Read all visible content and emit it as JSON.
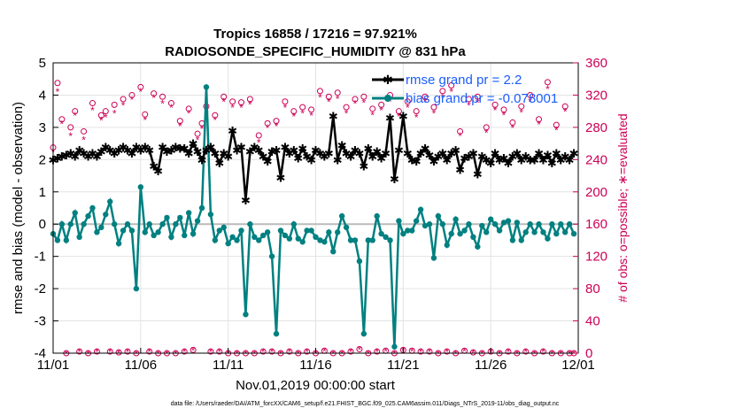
{
  "chart_data": {
    "type": "line",
    "title": "Tropics 16858 / 17216 = 97.921%",
    "subtitle": "RADIOSONDE_SPECIFIC_HUMIDITY @ 831 hPa",
    "xlabel": "Nov.01,2019 00:00:00 start",
    "ylabel": "rmse and bias (model - observation)",
    "y2label": "# of obs: o=possible; ∗=evaluated",
    "x_tick_labels": [
      "11/01",
      "11/06",
      "11/11",
      "11/16",
      "11/21",
      "11/26",
      "12/01"
    ],
    "x_tick_positions": [
      0,
      5,
      10,
      15,
      20,
      25,
      30
    ],
    "xlim": [
      0,
      30
    ],
    "ylim": [
      -4,
      5
    ],
    "y_ticks": [
      -4,
      -3,
      -2,
      -1,
      0,
      1,
      2,
      3,
      4,
      5
    ],
    "y2lim": [
      0,
      360
    ],
    "y2_ticks": [
      0,
      40,
      80,
      120,
      160,
      200,
      240,
      280,
      320,
      360
    ],
    "grid": true,
    "legend_position": "top-right",
    "footnote": "data file: /Users/raeder/DAI/ATM_forcXX/CAM6_setup/f.e21.FHIST_BGC.f09_025.CAM6assim.011/Diags_NTrS_2019-11/obs_diag_output.nc",
    "series": [
      {
        "name": "rmse grand pr = 2.2",
        "color": "#000000",
        "axis": "left",
        "x": [
          0,
          0.25,
          0.5,
          0.75,
          1,
          1.25,
          1.5,
          1.75,
          2,
          2.25,
          2.5,
          2.75,
          3,
          3.25,
          3.5,
          3.75,
          4,
          4.25,
          4.5,
          4.75,
          5,
          5.25,
          5.5,
          5.75,
          6,
          6.25,
          6.5,
          6.75,
          7,
          7.25,
          7.5,
          7.75,
          8,
          8.25,
          8.5,
          8.75,
          9,
          9.25,
          9.5,
          9.75,
          10,
          10.25,
          10.5,
          10.75,
          11,
          11.25,
          11.5,
          11.75,
          12,
          12.25,
          12.5,
          12.75,
          13,
          13.25,
          13.5,
          13.75,
          14,
          14.25,
          14.5,
          14.75,
          15,
          15.25,
          15.5,
          15.75,
          16,
          16.25,
          16.5,
          16.75,
          17,
          17.25,
          17.5,
          17.75,
          18,
          18.25,
          18.5,
          18.75,
          19,
          19.25,
          19.5,
          19.75,
          20,
          20.25,
          20.5,
          20.75,
          21,
          21.25,
          21.5,
          21.75,
          22,
          22.25,
          22.5,
          22.75,
          23,
          23.25,
          23.5,
          23.75,
          24,
          24.25,
          24.5,
          24.75,
          25,
          25.25,
          25.5,
          25.75,
          26,
          26.25,
          26.5,
          26.75,
          27,
          27.25,
          27.5,
          27.75,
          28,
          28.25,
          28.5,
          28.75,
          29,
          29.25,
          29.5,
          29.75
        ],
        "values": [
          2.0,
          2.05,
          2.1,
          2.15,
          2.2,
          2.1,
          2.3,
          2.2,
          2.1,
          2.2,
          2.1,
          2.25,
          2.4,
          2.3,
          2.2,
          2.3,
          2.4,
          2.3,
          2.2,
          2.4,
          2.3,
          2.4,
          2.3,
          1.8,
          1.65,
          2.4,
          2.25,
          2.3,
          2.4,
          2.35,
          2.35,
          2.2,
          2.5,
          2.25,
          2.0,
          2.3,
          2.4,
          2.2,
          1.9,
          2.2,
          2.1,
          2.9,
          2.3,
          2.4,
          0.75,
          2.25,
          2.4,
          2.3,
          2.1,
          1.95,
          2.25,
          2.3,
          1.45,
          2.4,
          2.2,
          2.3,
          2.05,
          2.35,
          2.1,
          2.0,
          2.3,
          2.2,
          2.1,
          2.2,
          3.35,
          2.0,
          2.45,
          2.2,
          2.1,
          2.3,
          2.2,
          1.8,
          2.35,
          2.1,
          2.25,
          2.05,
          2.2,
          3.3,
          1.4,
          2.3,
          3.35,
          2.2,
          2.0,
          1.95,
          2.2,
          2.35,
          2.15,
          1.95,
          2.1,
          2.2,
          2.0,
          2.2,
          2.3,
          1.7,
          2.05,
          2.1,
          2.2,
          1.55,
          2.1,
          2.0,
          1.9,
          2.2,
          2.0,
          2.05,
          1.9,
          2.1,
          2.2,
          2.0,
          2.1,
          2.0,
          2.0,
          2.2,
          2.0,
          2.15,
          1.9,
          2.2,
          2.0,
          2.1,
          2.0,
          2.2
        ],
        "marker": "asterisk"
      },
      {
        "name": "bias grand pr = -0.078001",
        "color": "#008080",
        "axis": "left",
        "values": [
          -0.3,
          -0.5,
          0.0,
          -0.5,
          0.0,
          0.35,
          -0.4,
          0.0,
          0.25,
          0.5,
          -0.25,
          -0.1,
          0.3,
          0.7,
          0.0,
          -0.6,
          -0.2,
          0.0,
          -0.2,
          -2.0,
          1.15,
          -0.25,
          0.0,
          -0.35,
          -0.25,
          0.0,
          0.2,
          -0.4,
          0.0,
          0.2,
          -0.35,
          0.35,
          -0.3,
          0.1,
          0.5,
          4.25,
          0.3,
          -0.5,
          -0.2,
          -0.1,
          -0.6,
          -0.4,
          -0.5,
          -0.2,
          -2.8,
          0.0,
          -0.4,
          -0.5,
          -0.35,
          -0.25,
          -1.0,
          -3.4,
          -0.2,
          -0.35,
          -0.45,
          0.0,
          -0.45,
          -0.55,
          -0.2,
          -0.2,
          -0.4,
          -0.5,
          -0.55,
          -0.25,
          -0.85,
          -0.25,
          0.25,
          -0.1,
          -0.5,
          -0.5,
          -1.15,
          -3.4,
          -0.5,
          -0.5,
          0.25,
          -0.3,
          -0.4,
          -0.5,
          -3.8,
          0.1,
          -0.3,
          -0.2,
          -0.2,
          0.1,
          0.45,
          -0.05,
          0.0,
          -1.05,
          0.25,
          0.0,
          -0.65,
          -0.3,
          0.15,
          -0.3,
          -0.2,
          0.0,
          -0.4,
          -0.7,
          -0.05,
          -0.25,
          0.15,
          0.0,
          -0.2,
          0.05,
          0.1,
          -0.5,
          0.05,
          -0.5,
          -0.25,
          0.0,
          -0.25,
          0.0,
          -0.25,
          -0.45,
          0.0,
          -0.3,
          0.0,
          -0.25,
          0.0,
          -0.3
        ],
        "marker": "circle"
      },
      {
        "name": "possible",
        "color": "#cc0055",
        "axis": "right",
        "marker": "open-circle",
        "values": [
          255,
          335,
          290,
          0,
          280,
          300,
          2,
          275,
          0,
          310,
          2,
          295,
          300,
          2,
          308,
          1,
          315,
          2,
          320,
          0,
          330,
          296,
          2,
          322,
          0,
          318,
          0,
          310,
          0,
          288,
          2,
          303,
          4,
          272,
          285,
          306,
          2,
          295,
          2,
          318,
          0,
          312,
          0,
          311,
          0,
          315,
          0,
          270,
          2,
          285,
          2,
          288,
          0,
          312,
          2,
          300,
          0,
          305,
          2,
          302,
          0,
          325,
          3,
          318,
          0,
          323,
          0,
          305,
          2,
          315,
          5,
          318,
          0,
          303,
          2,
          308,
          3,
          320,
          0,
          300,
          4,
          312,
          3,
          300,
          2,
          318,
          2,
          305,
          0,
          325,
          2,
          332,
          0,
          275,
          3,
          315,
          1,
          318,
          0,
          280,
          2,
          308,
          0,
          302,
          2,
          286,
          0,
          306,
          2,
          320,
          0,
          290,
          2,
          336,
          0,
          283,
          0,
          306,
          0,
          0
        ]
      },
      {
        "name": "evaluated",
        "color": "#cc0055",
        "axis": "right",
        "marker": "asterisk",
        "values": [
          250,
          325,
          285,
          0,
          270,
          295,
          2,
          265,
          0,
          302,
          2,
          289,
          293,
          2,
          298,
          1,
          308,
          2,
          315,
          0,
          325,
          290,
          2,
          317,
          0,
          310,
          0,
          305,
          0,
          282,
          2,
          298,
          4,
          265,
          279,
          300,
          2,
          290,
          2,
          312,
          0,
          305,
          0,
          305,
          0,
          309,
          0,
          262,
          2,
          280,
          2,
          282,
          0,
          305,
          2,
          294,
          0,
          298,
          2,
          295,
          0,
          318,
          3,
          312,
          0,
          316,
          0,
          298,
          2,
          310,
          5,
          311,
          0,
          296,
          2,
          302,
          3,
          313,
          0,
          294,
          4,
          305,
          3,
          293,
          2,
          312,
          2,
          298,
          0,
          318,
          2,
          325,
          0,
          270,
          3,
          308,
          1,
          311,
          0,
          274,
          2,
          302,
          0,
          296,
          2,
          280,
          0,
          299,
          2,
          313,
          0,
          284,
          2,
          328,
          0,
          277,
          0,
          300,
          0,
          0
        ]
      }
    ]
  }
}
